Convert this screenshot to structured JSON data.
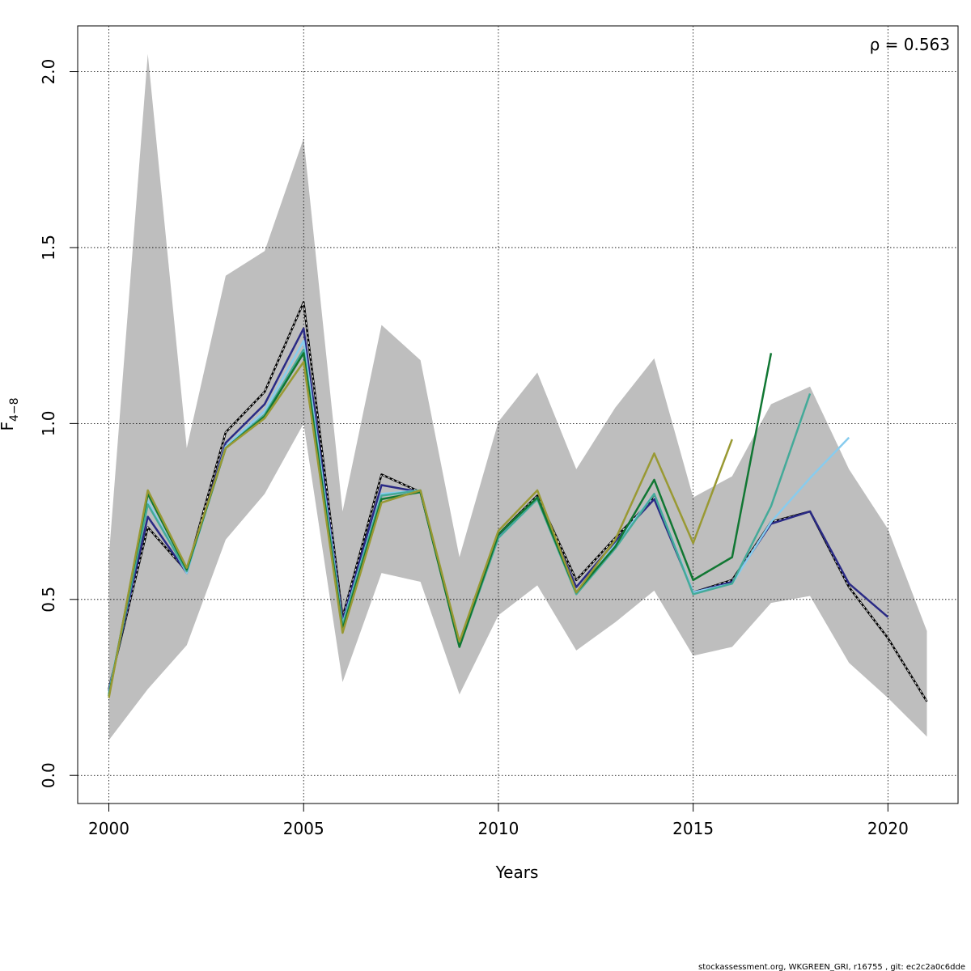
{
  "chart_data": {
    "type": "line",
    "xlabel": "Years",
    "ylabel_main": "F",
    "ylabel_sub": "4−8",
    "annotation": "ρ = 0.563",
    "footer": "stockassessment.org, WKGREEN_GRI, r16755 , git: ec2c2a0c6dde",
    "xlim": [
      1999.2,
      2021.8
    ],
    "ylim": [
      -0.08,
      2.13
    ],
    "x_ticks": [
      2000,
      2005,
      2010,
      2015,
      2020
    ],
    "x_tick_labels": [
      "2000",
      "2005",
      "2010",
      "2015",
      "2020"
    ],
    "y_ticks": [
      0.0,
      0.5,
      1.0,
      1.5,
      2.0
    ],
    "y_tick_labels": [
      "0.0",
      "0.5",
      "1.0",
      "1.5",
      "2.0"
    ],
    "grid": true,
    "band": {
      "color": "#bebebe",
      "x": [
        2000,
        2001,
        2002,
        2003,
        2004,
        2005,
        2006,
        2007,
        2008,
        2009,
        2010,
        2011,
        2012,
        2013,
        2014,
        2015,
        2016,
        2017,
        2018,
        2019,
        2020,
        2021
      ],
      "lower": [
        0.1,
        0.245,
        0.37,
        0.67,
        0.8,
        1.0,
        0.265,
        0.575,
        0.55,
        0.23,
        0.455,
        0.54,
        0.355,
        0.435,
        0.525,
        0.34,
        0.365,
        0.49,
        0.51,
        0.32,
        0.22,
        0.11
      ],
      "upper": [
        0.62,
        2.05,
        0.93,
        1.42,
        1.49,
        1.81,
        0.75,
        1.28,
        1.18,
        0.62,
        1.005,
        1.145,
        0.87,
        1.045,
        1.185,
        0.79,
        0.85,
        1.055,
        1.105,
        0.87,
        0.7,
        0.41
      ]
    },
    "series": [
      {
        "color": "#000000",
        "dashed": true,
        "x": [
          2000,
          2001,
          2002,
          2003,
          2004,
          2005,
          2006,
          2007,
          2008,
          2009,
          2010,
          2011,
          2012,
          2013,
          2014,
          2015,
          2016,
          2017,
          2018,
          2019,
          2020,
          2021
        ],
        "values": [
          0.245,
          0.705,
          0.58,
          0.975,
          1.09,
          1.345,
          0.45,
          0.855,
          0.805,
          0.375,
          0.685,
          0.795,
          0.555,
          0.675,
          0.79,
          0.52,
          0.555,
          0.72,
          0.75,
          0.535,
          0.39,
          0.21
        ]
      },
      {
        "color": "#2a2a85",
        "dashed": false,
        "x": [
          2000,
          2001,
          2002,
          2003,
          2004,
          2005,
          2006,
          2007,
          2008,
          2009,
          2010,
          2011,
          2012,
          2013,
          2014,
          2015,
          2016,
          2017,
          2018,
          2019,
          2020
        ],
        "values": [
          0.24,
          0.735,
          0.575,
          0.945,
          1.055,
          1.27,
          0.44,
          0.825,
          0.805,
          0.37,
          0.68,
          0.79,
          0.535,
          0.665,
          0.785,
          0.52,
          0.55,
          0.715,
          0.75,
          0.545,
          0.45
        ]
      },
      {
        "color": "#88ccee",
        "dashed": false,
        "x": [
          2000,
          2001,
          2002,
          2003,
          2004,
          2005,
          2006,
          2007,
          2008,
          2009,
          2010,
          2011,
          2012,
          2013,
          2014,
          2015,
          2016,
          2017,
          2018,
          2019
        ],
        "values": [
          0.235,
          0.78,
          0.575,
          0.935,
          1.035,
          1.235,
          0.43,
          0.8,
          0.81,
          0.37,
          0.675,
          0.785,
          0.52,
          0.655,
          0.8,
          0.52,
          0.545,
          0.72,
          0.845,
          0.96
        ]
      },
      {
        "color": "#44aa99",
        "dashed": false,
        "x": [
          2000,
          2001,
          2002,
          2003,
          2004,
          2005,
          2006,
          2007,
          2008,
          2009,
          2010,
          2011,
          2012,
          2013,
          2014,
          2015,
          2016,
          2017,
          2018
        ],
        "values": [
          0.23,
          0.77,
          0.58,
          0.93,
          1.025,
          1.21,
          0.425,
          0.795,
          0.81,
          0.365,
          0.675,
          0.785,
          0.515,
          0.645,
          0.8,
          0.515,
          0.545,
          0.765,
          1.085
        ]
      },
      {
        "color": "#117733",
        "dashed": false,
        "x": [
          2000,
          2001,
          2002,
          2003,
          2004,
          2005,
          2006,
          2007,
          2008,
          2009,
          2010,
          2011,
          2012,
          2013,
          2014,
          2015,
          2016,
          2017
        ],
        "values": [
          0.225,
          0.8,
          0.585,
          0.93,
          1.02,
          1.2,
          0.415,
          0.785,
          0.805,
          0.365,
          0.685,
          0.79,
          0.52,
          0.65,
          0.84,
          0.555,
          0.62,
          1.2
        ]
      },
      {
        "color": "#999933",
        "dashed": false,
        "x": [
          2000,
          2001,
          2002,
          2003,
          2004,
          2005,
          2006,
          2007,
          2008,
          2009,
          2010,
          2011,
          2012,
          2013,
          2014,
          2015,
          2016
        ],
        "values": [
          0.22,
          0.81,
          0.59,
          0.93,
          1.015,
          1.175,
          0.405,
          0.775,
          0.81,
          0.38,
          0.695,
          0.81,
          0.52,
          0.67,
          0.915,
          0.66,
          0.955
        ]
      }
    ]
  }
}
